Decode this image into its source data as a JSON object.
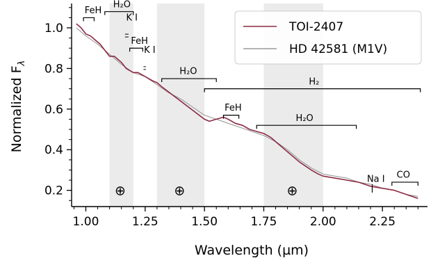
{
  "chart_data": {
    "type": "line",
    "xlabel": "Wavelength (µm)",
    "ylabel": "Normalized F",
    "ylabel_subscript": "λ",
    "xlim": [
      0.94,
      2.44
    ],
    "ylim": [
      0.12,
      1.12
    ],
    "x_ticks": [
      1.0,
      1.25,
      1.5,
      1.75,
      2.0,
      2.25
    ],
    "x_tick_labels": [
      "1.00",
      "1.25",
      "1.50",
      "1.75",
      "2.00",
      "2.25"
    ],
    "y_ticks": [
      0.2,
      0.4,
      0.6,
      0.8,
      1.0
    ],
    "y_tick_labels": [
      "0.2",
      "0.4",
      "0.6",
      "0.8",
      "1.0"
    ],
    "grid": false,
    "legend_position": "top-right",
    "series": [
      {
        "name": "TOI-2407",
        "color": "#8b2942",
        "x": [
          0.96,
          0.98,
          1.0,
          1.02,
          1.04,
          1.06,
          1.08,
          1.1,
          1.12,
          1.15,
          1.17,
          1.2,
          1.22,
          1.25,
          1.28,
          1.3,
          1.32,
          1.5,
          1.52,
          1.55,
          1.58,
          1.6,
          1.63,
          1.66,
          1.69,
          1.72,
          1.75,
          1.78,
          1.8,
          1.9,
          1.95,
          1.98,
          2.0,
          2.05,
          2.1,
          2.15,
          2.2,
          2.25,
          2.3,
          2.35,
          2.4
        ],
        "y": [
          1.02,
          1.0,
          0.97,
          0.96,
          0.94,
          0.92,
          0.89,
          0.86,
          0.86,
          0.83,
          0.8,
          0.78,
          0.78,
          0.76,
          0.74,
          0.73,
          0.71,
          0.55,
          0.54,
          0.55,
          0.56,
          0.55,
          0.53,
          0.52,
          0.5,
          0.49,
          0.48,
          0.46,
          0.44,
          0.34,
          0.3,
          0.28,
          0.27,
          0.26,
          0.25,
          0.24,
          0.22,
          0.21,
          0.2,
          0.18,
          0.16
        ]
      },
      {
        "name": "HD 42581 (M1V)",
        "color": "#9a9a9a",
        "x": [
          0.96,
          1.0,
          1.05,
          1.1,
          1.15,
          1.2,
          1.25,
          1.3,
          1.35,
          1.4,
          1.45,
          1.5,
          1.55,
          1.6,
          1.65,
          1.7,
          1.75,
          1.8,
          1.85,
          1.9,
          1.95,
          2.0,
          2.05,
          2.1,
          2.15,
          2.2,
          2.25,
          2.3,
          2.35,
          2.4
        ],
        "y": [
          1.0,
          0.96,
          0.92,
          0.87,
          0.82,
          0.78,
          0.76,
          0.72,
          0.68,
          0.65,
          0.61,
          0.57,
          0.55,
          0.53,
          0.51,
          0.49,
          0.47,
          0.44,
          0.4,
          0.35,
          0.31,
          0.28,
          0.27,
          0.26,
          0.24,
          0.23,
          0.21,
          0.2,
          0.18,
          0.17
        ]
      }
    ],
    "telluric_bands": [
      {
        "x0": 1.1,
        "x1": 1.2,
        "label": "⊕",
        "label_x": 1.145
      },
      {
        "x0": 1.3,
        "x1": 1.5,
        "label": "⊕",
        "label_x": 1.395
      },
      {
        "x0": 1.75,
        "x1": 2.0,
        "label": "⊕",
        "label_x": 1.87
      }
    ],
    "annotations": [
      {
        "text": "FeH",
        "x0": 0.99,
        "x1": 1.035,
        "y": 1.05,
        "text_x": 0.995,
        "text_y": 1.065
      },
      {
        "text": "H₂O",
        "x0": 1.08,
        "x1": 1.2,
        "y": 1.08,
        "text_x": 1.115,
        "text_y": 1.095
      },
      {
        "text": "K I",
        "x0": 1.165,
        "x1": 1.18,
        "y": 1.01,
        "text_x": 1.17,
        "text_y": 1.03,
        "doublet": true
      },
      {
        "text": "FeH",
        "x0": 1.185,
        "x1": 1.24,
        "y": 0.9,
        "text_x": 1.19,
        "text_y": 0.915
      },
      {
        "text": "K I",
        "x0": 1.243,
        "x1": 1.253,
        "y": 0.85,
        "text_x": 1.245,
        "text_y": 0.87,
        "doublet": true
      },
      {
        "text": "H₂O",
        "x0": 1.32,
        "x1": 1.55,
        "y": 0.75,
        "text_x": 1.395,
        "text_y": 0.765
      },
      {
        "text": "H₂",
        "x0": 1.5,
        "x1": 2.41,
        "y": 0.7,
        "text_x": 1.94,
        "text_y": 0.715
      },
      {
        "text": "FeH",
        "x0": 1.58,
        "x1": 1.645,
        "y": 0.57,
        "text_x": 1.585,
        "text_y": 0.585
      },
      {
        "text": "H₂O",
        "x0": 1.72,
        "x1": 2.14,
        "y": 0.52,
        "text_x": 1.885,
        "text_y": 0.535
      },
      {
        "text": "Na I",
        "x0": 2.207,
        "x1": 2.207,
        "y": 0.23,
        "text_x": 2.185,
        "text_y": 0.235,
        "line_only": true
      },
      {
        "text": "CO",
        "x0": 2.29,
        "x1": 2.4,
        "y": 0.24,
        "text_x": 2.31,
        "text_y": 0.255
      }
    ]
  }
}
